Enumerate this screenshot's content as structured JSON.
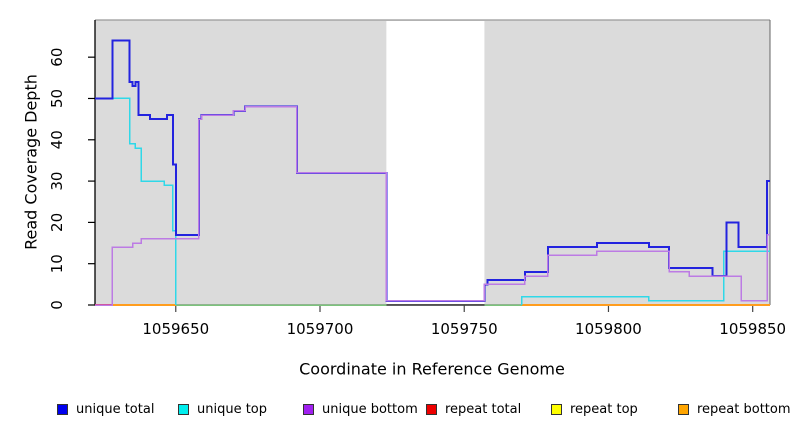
{
  "figure_title": "",
  "y_axis": {
    "title": "Read Coverage Depth",
    "tick_labels": [
      "0",
      "10",
      "20",
      "30",
      "40",
      "50",
      "60"
    ]
  },
  "x_axis": {
    "title": "Coordinate in Reference Genome",
    "tick_labels": [
      "1059650",
      "1059700",
      "1059750",
      "1059800",
      "1059850"
    ]
  },
  "legend": {
    "items": [
      {
        "label": "unique total",
        "color": "#0000EE"
      },
      {
        "label": "unique top",
        "color": "#00EEEE"
      },
      {
        "label": "unique bottom",
        "color": "#A020F0"
      },
      {
        "label": "repeat total",
        "color": "#EE0000"
      },
      {
        "label": "repeat top",
        "color": "#FFFF00"
      },
      {
        "label": "repeat bottom",
        "color": "#FFA500"
      }
    ]
  },
  "chart_data": {
    "type": "line",
    "subtype": "step",
    "title": "",
    "xlabel": "Coordinate in Reference Genome",
    "ylabel": "Read Coverage Depth",
    "xlim": [
      1059622,
      1059856
    ],
    "ylim": [
      0,
      69
    ],
    "x_ticks": [
      1059650,
      1059700,
      1059750,
      1059800,
      1059850
    ],
    "y_ticks": [
      0,
      10,
      20,
      30,
      40,
      50,
      60
    ],
    "grid": false,
    "legend_position": "bottom",
    "panel_background": "#DBDBDB",
    "masked_region": {
      "x_start": 1059723,
      "x_end": 1059757,
      "color": "#FFFFFF"
    },
    "series": [
      {
        "name": "repeat total",
        "color": "#E03060",
        "width": 1.6,
        "segments": [
          {
            "points": [
              [
                1059622,
                0
              ],
              [
                1059628,
                0
              ]
            ]
          }
        ]
      },
      {
        "name": "repeat bottom",
        "color": "#FF9D1E",
        "width": 2,
        "segments": [
          {
            "points": [
              [
                1059628,
                0
              ],
              [
                1059650,
                0
              ]
            ]
          },
          {
            "points": [
              [
                1059770,
                0
              ],
              [
                1059856,
                0
              ]
            ]
          }
        ]
      },
      {
        "name": "baseline (unlabeled)",
        "color": "#7CC47C",
        "width": 1.5,
        "segments": [
          {
            "points": [
              [
                1059650,
                0
              ],
              [
                1059723,
                0
              ]
            ]
          },
          {
            "points": [
              [
                1059757,
                0
              ],
              [
                1059770,
                0
              ]
            ]
          }
        ]
      },
      {
        "name": "unique top",
        "color": "#2FD8E8",
        "width": 1.5,
        "segments": [
          {
            "points": [
              [
                1059622,
                50
              ],
              [
                1059634,
                39
              ],
              [
                1059636,
                38
              ],
              [
                1059638,
                30
              ],
              [
                1059646,
                29
              ],
              [
                1059649,
                18
              ],
              [
                1059650,
                0
              ]
            ]
          },
          {
            "points": [
              [
                1059770,
                0
              ],
              [
                1059770,
                2
              ],
              [
                1059814,
                1
              ],
              [
                1059840,
                13
              ],
              [
                1059856,
                13
              ]
            ]
          }
        ]
      },
      {
        "name": "unique total",
        "color": "#2323DF",
        "width": 2,
        "segments": [
          {
            "points": [
              [
                1059622,
                50
              ],
              [
                1059628,
                64
              ],
              [
                1059634,
                54
              ],
              [
                1059635,
                53
              ],
              [
                1059636,
                54
              ],
              [
                1059637,
                46
              ],
              [
                1059641,
                45
              ],
              [
                1059647,
                46
              ],
              [
                1059649,
                34
              ],
              [
                1059650,
                17
              ],
              [
                1059658,
                45
              ],
              [
                1059659,
                46
              ],
              [
                1059670,
                47
              ],
              [
                1059674,
                48
              ],
              [
                1059692,
                32
              ],
              [
                1059723,
                1
              ],
              [
                1059757,
                5
              ],
              [
                1059758,
                6
              ],
              [
                1059771,
                8
              ],
              [
                1059779,
                14
              ],
              [
                1059796,
                15
              ],
              [
                1059814,
                14
              ],
              [
                1059821,
                9
              ],
              [
                1059836,
                7
              ],
              [
                1059841,
                20
              ],
              [
                1059845,
                14
              ],
              [
                1059855,
                30
              ],
              [
                1059856,
                30
              ]
            ]
          }
        ]
      },
      {
        "name": "unique bottom",
        "color": "#BC7BE4",
        "width": 1.5,
        "segments": [
          {
            "points": [
              [
                1059622,
                0
              ],
              [
                1059628,
                14
              ],
              [
                1059635,
                15
              ],
              [
                1059638,
                16
              ],
              [
                1059658,
                45
              ],
              [
                1059659,
                46
              ],
              [
                1059670,
                47
              ],
              [
                1059674,
                48
              ],
              [
                1059692,
                32
              ],
              [
                1059723,
                1
              ],
              [
                1059757,
                5
              ],
              [
                1059771,
                7
              ],
              [
                1059779,
                12
              ],
              [
                1059796,
                13
              ],
              [
                1059821,
                8
              ],
              [
                1059828,
                7
              ],
              [
                1059846,
                1
              ],
              [
                1059855,
                17
              ],
              [
                1059856,
                17
              ]
            ]
          }
        ]
      }
    ]
  }
}
